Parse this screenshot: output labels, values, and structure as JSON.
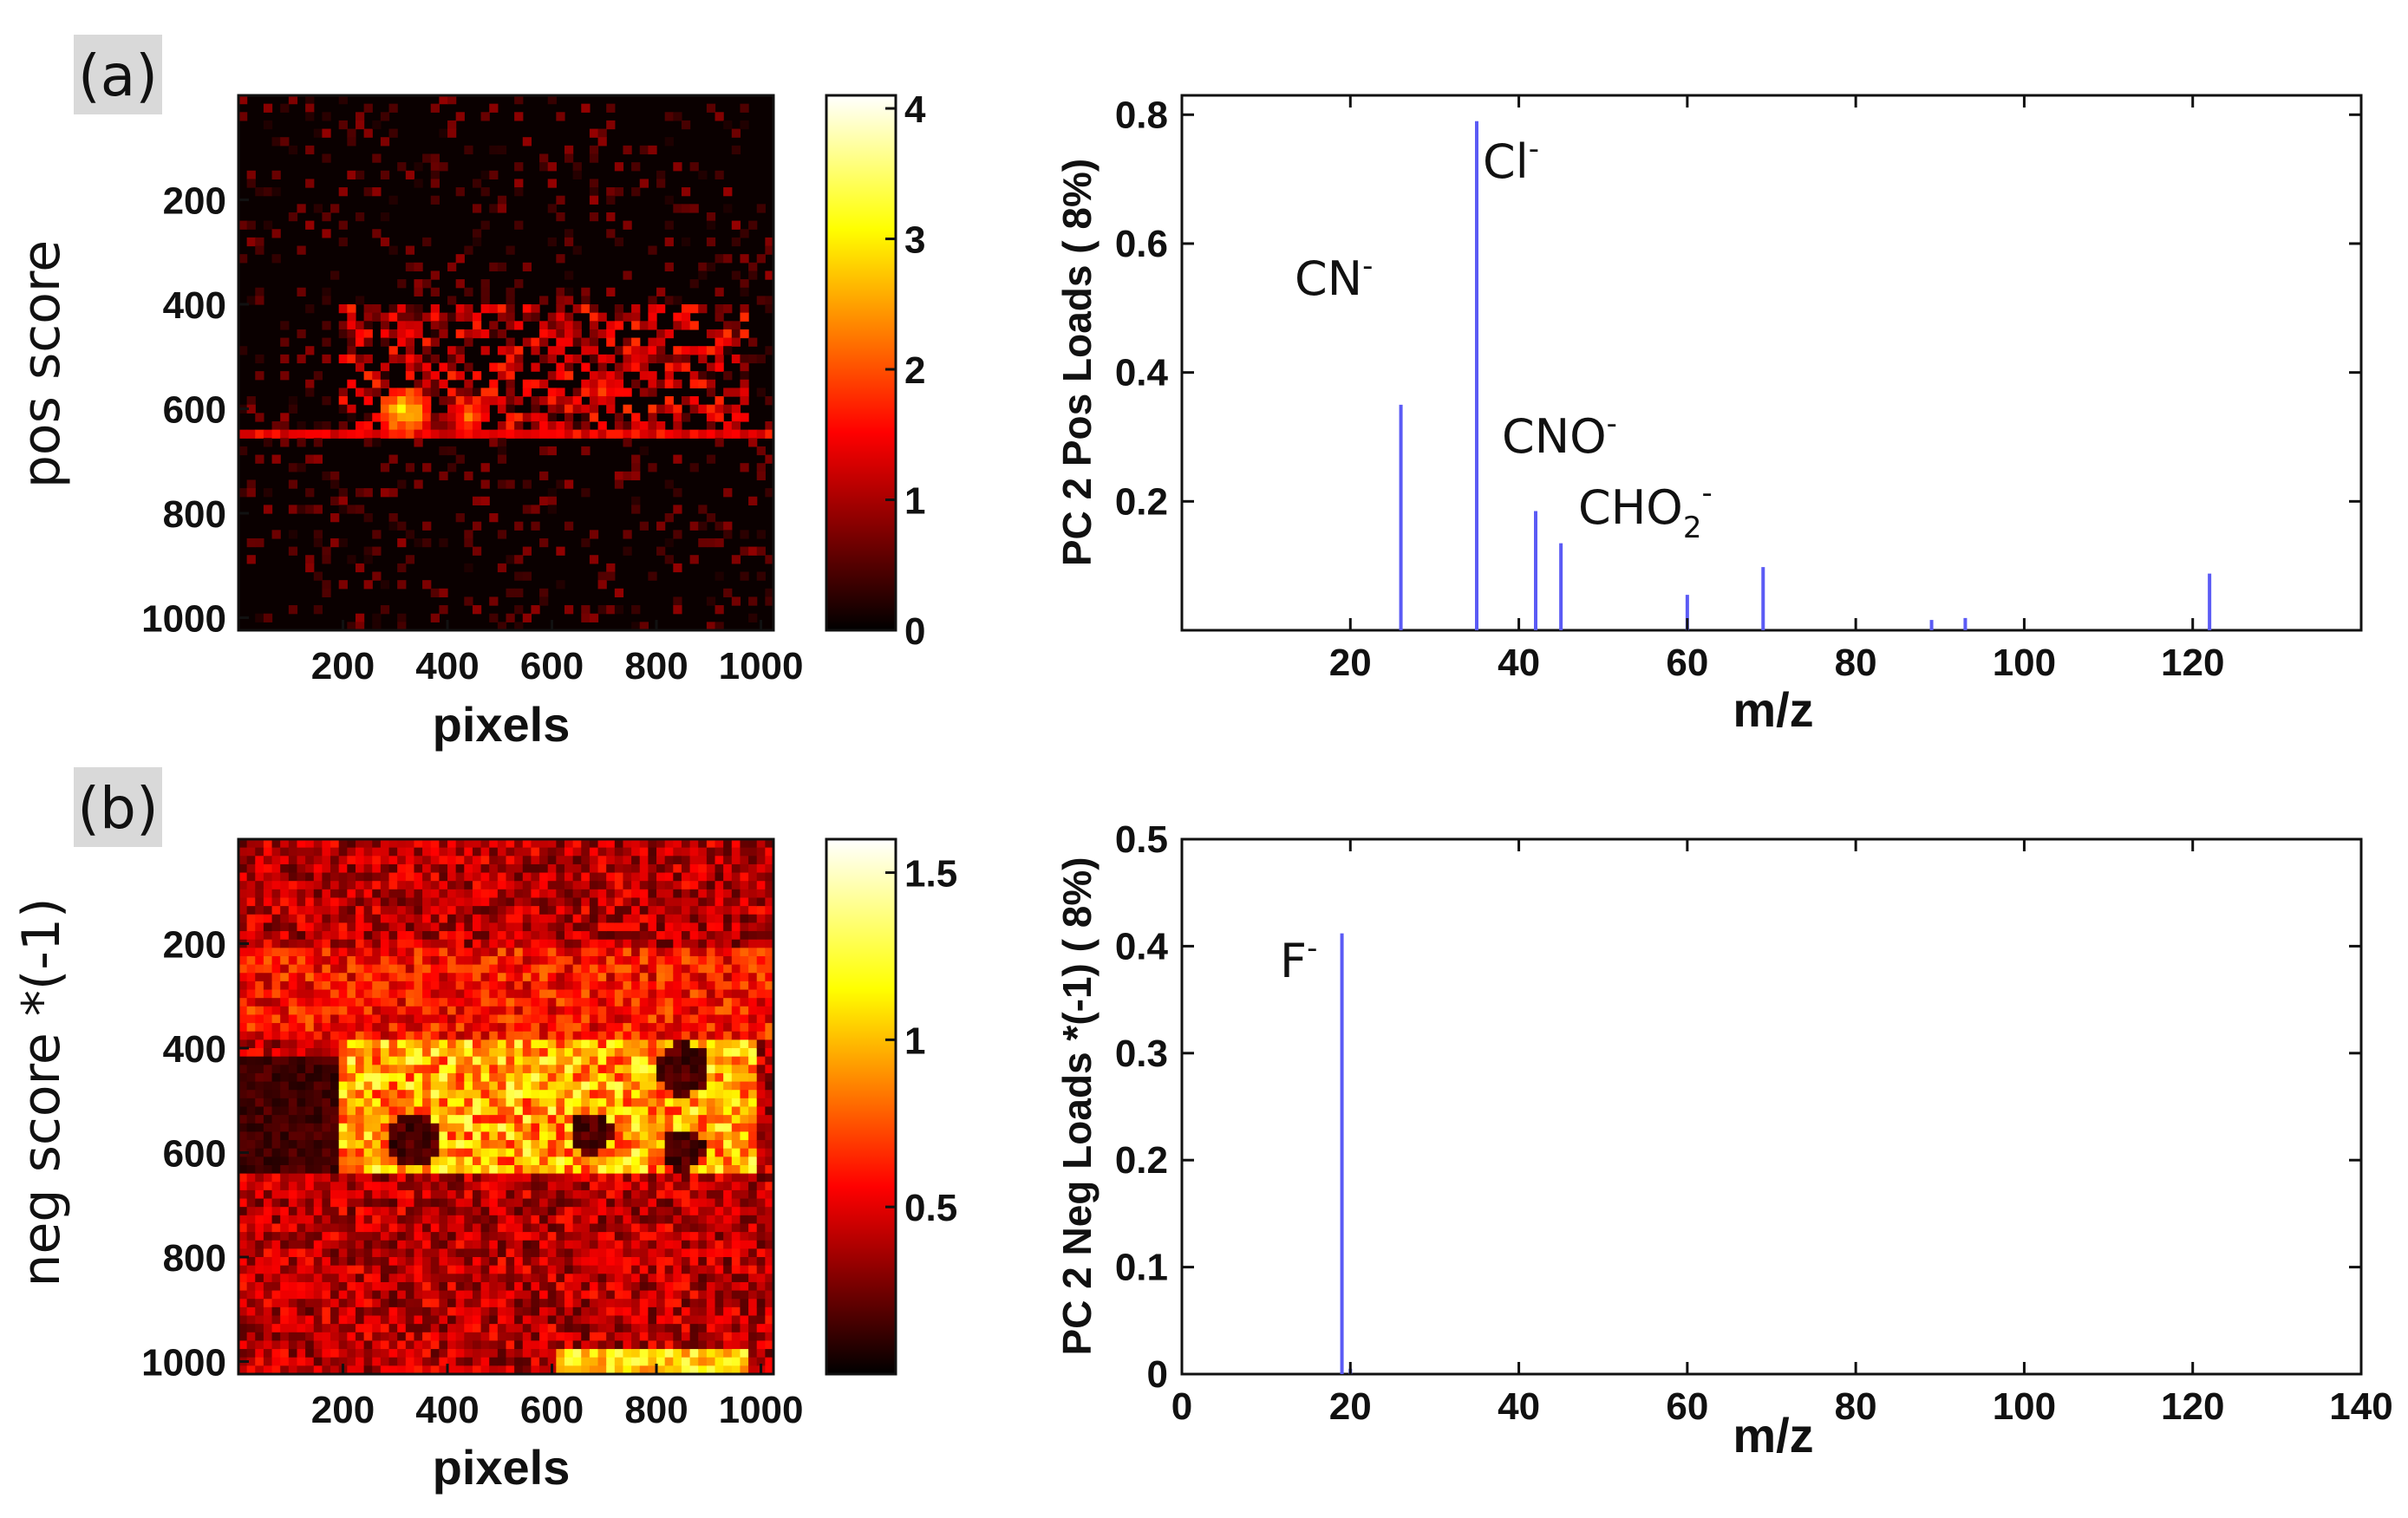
{
  "panels": {
    "a": {
      "tag": "(a)"
    },
    "b": {
      "tag": "(b)"
    }
  },
  "chart_data": [
    {
      "type": "heatmap",
      "panel": "a",
      "ylabel": "pos score",
      "xlabel": "pixels",
      "xticks": [
        200,
        400,
        600,
        800,
        1000
      ],
      "yticks": [
        200,
        400,
        600,
        800,
        1000
      ],
      "xlim": [
        0,
        1024
      ],
      "ylim": [
        0,
        1024
      ],
      "colormap": "hot",
      "colorbar": {
        "min": 0,
        "max": 4.1,
        "ticks": [
          0,
          1,
          2,
          3,
          4
        ]
      },
      "features": {
        "bright_band_rows": [
          420,
          650
        ],
        "hot_spots_x": [
          320,
          440,
          700,
          780
        ]
      }
    },
    {
      "type": "bar",
      "panel": "a",
      "ylabel": "PC  2 Pos Loads ( 8%)",
      "xlabel": "m/z",
      "xlim": [
        0,
        140
      ],
      "ylim": [
        0,
        0.83
      ],
      "xticks": [
        20,
        40,
        60,
        80,
        100,
        120
      ],
      "yticks": [
        0.2,
        0.4,
        0.6,
        0.8
      ],
      "line_color": "#5b5bf5",
      "peaks": [
        {
          "x": 26,
          "y": 0.35
        },
        {
          "x": 35,
          "y": 0.79
        },
        {
          "x": 42,
          "y": 0.185
        },
        {
          "x": 45,
          "y": 0.135
        },
        {
          "x": 60,
          "y": 0.055
        },
        {
          "x": 69,
          "y": 0.098
        },
        {
          "x": 89,
          "y": 0.016
        },
        {
          "x": 93,
          "y": 0.019
        },
        {
          "x": 122,
          "y": 0.088
        }
      ],
      "annotations": [
        {
          "text": "CN",
          "sup": "-",
          "sub": ""
        },
        {
          "text": "Cl",
          "sup": "-",
          "sub": ""
        },
        {
          "text": "CNO",
          "sup": "-",
          "sub": ""
        },
        {
          "text": "CHO",
          "sup": "-",
          "sub": "2"
        }
      ]
    },
    {
      "type": "heatmap",
      "panel": "b",
      "ylabel": "neg score *(-1)",
      "xlabel": "pixels",
      "xticks": [
        200,
        400,
        600,
        800,
        1000
      ],
      "yticks": [
        200,
        400,
        600,
        800,
        1000
      ],
      "xlim": [
        0,
        1024
      ],
      "ylim": [
        0,
        1024
      ],
      "colormap": "hot",
      "colorbar": {
        "min": 0,
        "max": 1.6,
        "ticks": [
          0.5,
          1,
          1.5
        ]
      },
      "features": {
        "bright_band_rows": [
          400,
          650
        ],
        "hot_spots_x": [
          200,
          980
        ]
      }
    },
    {
      "type": "bar",
      "panel": "b",
      "ylabel": "PC  2 Neg Loads *(-1) ( 8%)",
      "xlabel": "m/z",
      "xlim": [
        0,
        140
      ],
      "ylim": [
        0,
        0.5
      ],
      "xticks": [
        0,
        20,
        40,
        60,
        80,
        100,
        120,
        140
      ],
      "yticks": [
        0,
        0.1,
        0.2,
        0.3,
        0.4,
        0.5
      ],
      "line_color": "#5b5bf5",
      "peaks": [
        {
          "x": 19,
          "y": 0.412
        },
        {
          "x": 20,
          "y": 0.005
        }
      ],
      "annotations": [
        {
          "text": "F",
          "sup": "-",
          "sub": ""
        }
      ]
    }
  ]
}
